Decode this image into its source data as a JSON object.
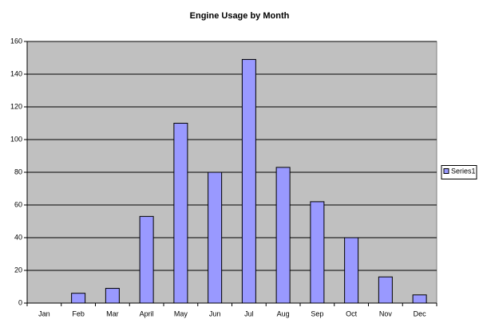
{
  "chart_data": {
    "type": "bar",
    "title": "Engine Usage by Month",
    "categories": [
      "Jan",
      "Feb",
      "Mar",
      "April",
      "May",
      "Jun",
      "Jul",
      "Aug",
      "Sep",
      "Oct",
      "Nov",
      "Dec"
    ],
    "series": [
      {
        "name": "Series1",
        "color": "#9999ff",
        "values": [
          0,
          6,
          9,
          53,
          110,
          80,
          149,
          83,
          62,
          40,
          16,
          5
        ]
      }
    ],
    "ylim": [
      0,
      160
    ],
    "yticks": [
      0,
      20,
      40,
      60,
      80,
      100,
      120,
      140,
      160
    ],
    "grid": true,
    "legend": "right"
  }
}
